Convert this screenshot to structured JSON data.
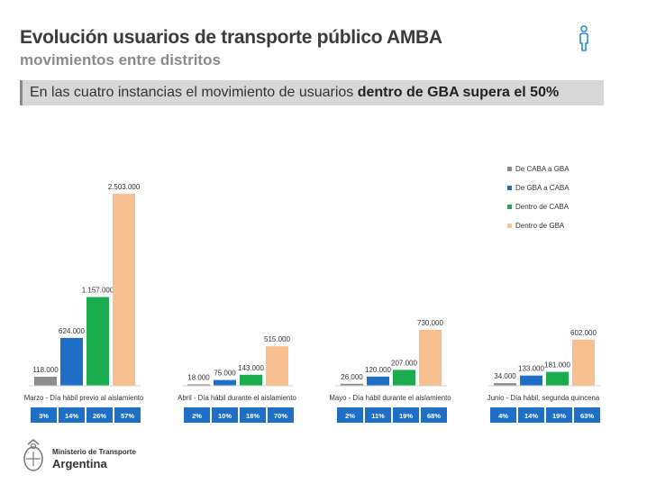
{
  "header": {
    "title": "Evolución usuarios de transporte público AMBA",
    "subtitle": "movimientos entre distritos",
    "banner_text": "En las cuatro instancias el movimiento de usuarios ",
    "banner_bold": "dentro de GBA supera el 50%"
  },
  "footer": {
    "ministry": "Ministerio de Transporte",
    "country": "Argentina"
  },
  "colors": {
    "series": [
      "#8c8c8c",
      "#1f6fc6",
      "#1cab4e",
      "#f9c08f"
    ],
    "pct_box": "#1f6fc6",
    "text": "#333333"
  },
  "chart_data": {
    "type": "bar",
    "categories": [
      "Marzo - Día hábil previo al aislamiento",
      "Abril - Día hábil durante el aislamiento",
      "Mayo - Día hábil durante el aislamiento",
      "Junio - Día hábil, segunda quincena"
    ],
    "series": [
      {
        "name": "De CABA a GBA",
        "values": [
          118000,
          18000,
          26000,
          34000
        ],
        "labels": [
          "118.000",
          "18.000",
          "26.000",
          "34.000"
        ],
        "pct": [
          "3%",
          "2%",
          "2%",
          "4%"
        ]
      },
      {
        "name": "De GBA a CABA",
        "values": [
          624000,
          75000,
          120000,
          133000
        ],
        "labels": [
          "624.000",
          "75.000",
          "120.000",
          "133.000"
        ],
        "pct": [
          "14%",
          "10%",
          "11%",
          "14%"
        ]
      },
      {
        "name": "Dentro de CABA",
        "values": [
          1157000,
          143000,
          207000,
          181000
        ],
        "labels": [
          "1.157.000",
          "143.000",
          "207.000",
          "181.000"
        ],
        "pct": [
          "26%",
          "18%",
          "19%",
          "19%"
        ]
      },
      {
        "name": "Dentro de GBA",
        "values": [
          2503000,
          515000,
          730000,
          602000
        ],
        "labels": [
          "2.503.000",
          "515.000",
          "730.000",
          "602.000"
        ],
        "pct": [
          "57%",
          "70%",
          "68%",
          "63%"
        ]
      }
    ],
    "ylim": [
      0,
      2503000
    ],
    "legend": "right",
    "grid": false
  }
}
